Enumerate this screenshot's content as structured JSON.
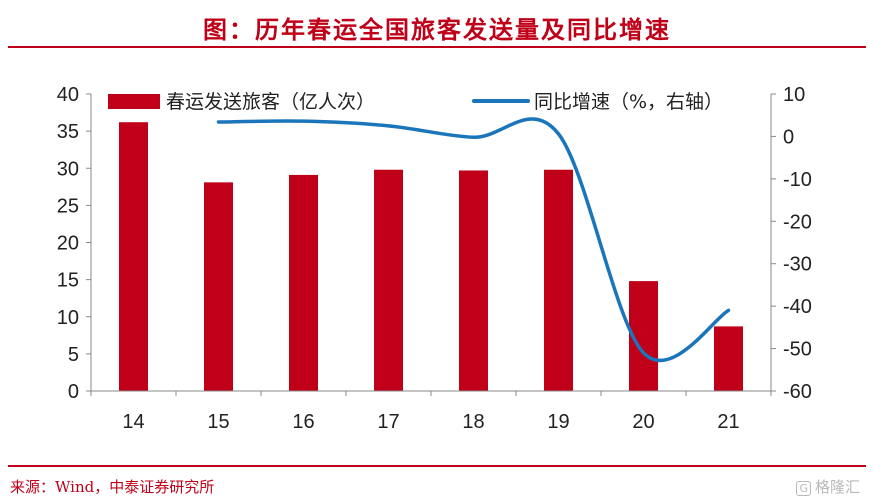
{
  "title": "图：历年春运全国旅客发送量及同比增速",
  "source": "来源：Wind，中泰证券研究所",
  "watermark": "格隆汇",
  "chart_data": {
    "type": "bar",
    "categories": [
      "14",
      "15",
      "16",
      "17",
      "18",
      "19",
      "20",
      "21"
    ],
    "series": [
      {
        "name": "春运发送旅客（亿人次）",
        "type": "bar",
        "axis": "left",
        "color": "#c00018",
        "values": [
          36.2,
          28.1,
          29.1,
          29.8,
          29.7,
          29.8,
          14.8,
          8.7
        ]
      },
      {
        "name": "同比增速（%，右轴）",
        "type": "line",
        "axis": "right",
        "color": "#1b75bb",
        "x": [
          "15",
          "16",
          "17",
          "18",
          "19",
          "20",
          "21"
        ],
        "values": [
          3.4,
          3.6,
          2.5,
          -0.2,
          0.6,
          -51.0,
          -41.0
        ]
      }
    ],
    "ylim_left": [
      0,
      40
    ],
    "yticks_left": [
      "0",
      "5",
      "10",
      "15",
      "20",
      "25",
      "30",
      "35",
      "40"
    ],
    "ylim_right": [
      -60,
      10
    ],
    "yticks_right": [
      "-60",
      "-50",
      "-40",
      "-30",
      "-20",
      "-10",
      "0",
      "10"
    ],
    "grid": false,
    "legend": "top"
  }
}
